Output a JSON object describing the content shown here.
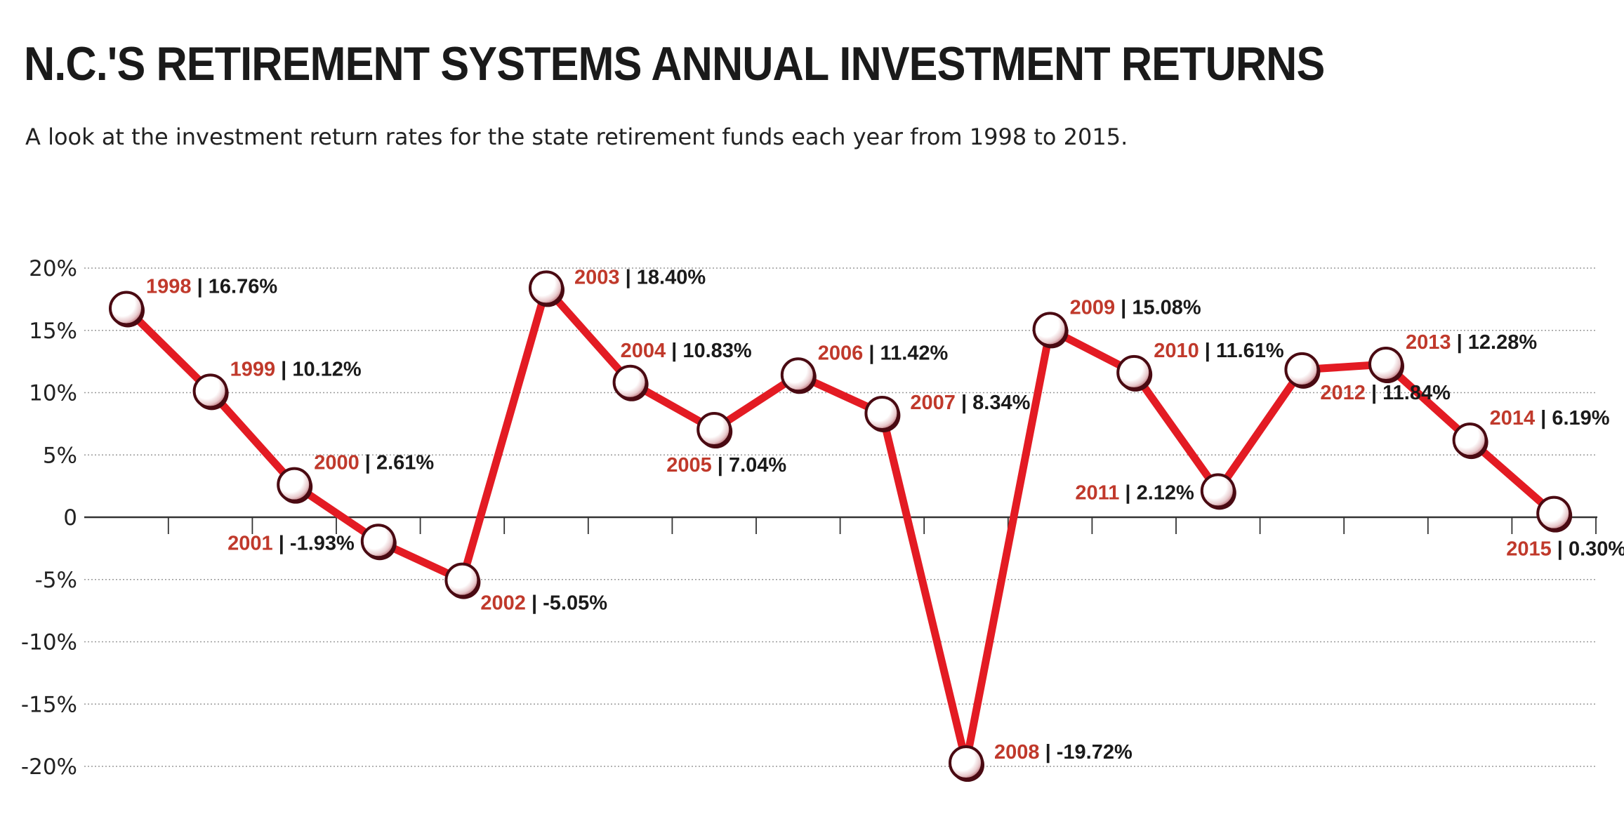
{
  "chart_data": {
    "type": "line",
    "title": "N.C.'S RETIREMENT SYSTEMS ANNUAL INVESTMENT RETURNS",
    "subtitle": "A look at the investment return rates for the state retirement funds each year from 1998 to 2015.",
    "xlabel": "",
    "ylabel": "",
    "ylim": [
      -20,
      20
    ],
    "y_ticks": [
      {
        "value": 20,
        "label": "20%"
      },
      {
        "value": 15,
        "label": "15%"
      },
      {
        "value": 10,
        "label": "10%"
      },
      {
        "value": 5,
        "label": "5%"
      },
      {
        "value": 0,
        "label": "0"
      },
      {
        "value": -5,
        "label": "-5%"
      },
      {
        "value": -10,
        "label": "-10%"
      },
      {
        "value": -15,
        "label": "-15%"
      },
      {
        "value": -20,
        "label": "-20%"
      }
    ],
    "grid": true,
    "series": [
      {
        "name": "Annual investment return",
        "points": [
          {
            "year": "1998",
            "value": 16.76,
            "label": "16.76%",
            "label_pos": "above-right"
          },
          {
            "year": "1999",
            "value": 10.12,
            "label": "10.12%",
            "label_pos": "above-right"
          },
          {
            "year": "2000",
            "value": 2.61,
            "label": "2.61%",
            "label_pos": "above-right"
          },
          {
            "year": "2001",
            "value": -1.93,
            "label": "-1.93%",
            "label_pos": "left"
          },
          {
            "year": "2002",
            "value": -5.05,
            "label": "-5.05%",
            "label_pos": "below-right"
          },
          {
            "year": "2003",
            "value": 18.4,
            "label": "18.40%",
            "label_pos": "right"
          },
          {
            "year": "2004",
            "value": 10.83,
            "label": "10.83%",
            "label_pos": "above"
          },
          {
            "year": "2005",
            "value": 7.04,
            "label": "7.04%",
            "label_pos": "below"
          },
          {
            "year": "2006",
            "value": 11.42,
            "label": "11.42%",
            "label_pos": "above-right"
          },
          {
            "year": "2007",
            "value": 8.34,
            "label": "8.34%",
            "label_pos": "right"
          },
          {
            "year": "2008",
            "value": -19.72,
            "label": "-19.72%",
            "label_pos": "right"
          },
          {
            "year": "2009",
            "value": 15.08,
            "label": "15.08%",
            "label_pos": "above-right"
          },
          {
            "year": "2010",
            "value": 11.61,
            "label": "11.61%",
            "label_pos": "above-right"
          },
          {
            "year": "2011",
            "value": 2.12,
            "label": "2.12%",
            "label_pos": "left"
          },
          {
            "year": "2012",
            "value": 11.84,
            "label": "11.84%",
            "label_pos": "below-right"
          },
          {
            "year": "2013",
            "value": 12.28,
            "label": "12.28%",
            "label_pos": "above-right"
          },
          {
            "year": "2014",
            "value": 6.19,
            "label": "6.19%",
            "label_pos": "above-right"
          },
          {
            "year": "2015",
            "value": 0.3,
            "label": "0.30%",
            "label_pos": "below"
          }
        ]
      }
    ],
    "colors": {
      "line": "#e31b23",
      "year_label": "#c0392b",
      "value_label": "#1a1a1a",
      "marker_edge": "#4a0a12",
      "grid": "#9a9a9a",
      "axis": "#333333"
    }
  }
}
